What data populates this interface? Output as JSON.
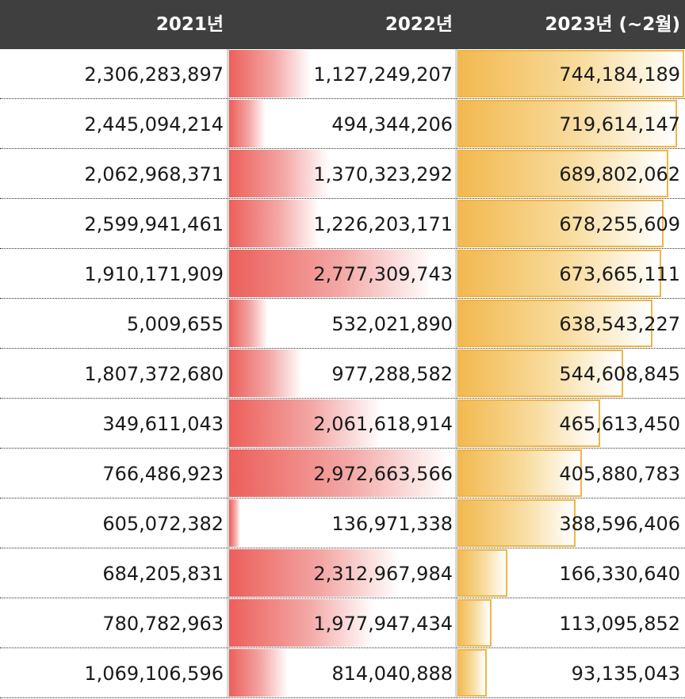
{
  "header": {
    "col_2021": "2021년",
    "col_2022": "2022년",
    "col_2023": "2023년 (~2월)"
  },
  "colors": {
    "header_bg": "#3f3f3f",
    "bar_2022": "#ec5f5a",
    "bar_2023": "#f2b84e"
  },
  "rows": [
    {
      "v2021": "2,306,283,897",
      "v2022": "1,127,249,207",
      "v2023": "744,184,189",
      "fill2022": 0.36,
      "fill2023": 1.0
    },
    {
      "v2021": "2,445,094,214",
      "v2022": "494,344,206",
      "v2023": "719,614,147",
      "fill2022": 0.16,
      "fill2023": 0.97
    },
    {
      "v2021": "2,062,968,371",
      "v2022": "1,370,323,292",
      "v2023": "689,802,062",
      "fill2022": 0.44,
      "fill2023": 0.93
    },
    {
      "v2021": "2,599,941,461",
      "v2022": "1,226,203,171",
      "v2023": "678,255,609",
      "fill2022": 0.4,
      "fill2023": 0.91
    },
    {
      "v2021": "1,910,171,909",
      "v2022": "2,777,309,743",
      "v2023": "673,665,111",
      "fill2022": 0.9,
      "fill2023": 0.9
    },
    {
      "v2021": "5,009,655",
      "v2022": "532,021,890",
      "v2023": "638,543,227",
      "fill2022": 0.17,
      "fill2023": 0.86
    },
    {
      "v2021": "1,807,372,680",
      "v2022": "977,288,582",
      "v2023": "544,608,845",
      "fill2022": 0.32,
      "fill2023": 0.73
    },
    {
      "v2021": "349,611,043",
      "v2022": "2,061,618,914",
      "v2023": "465,613,450",
      "fill2022": 0.67,
      "fill2023": 0.63
    },
    {
      "v2021": "766,486,923",
      "v2022": "2,972,663,566",
      "v2023": "405,880,783",
      "fill2022": 0.97,
      "fill2023": 0.55
    },
    {
      "v2021": "605,072,382",
      "v2022": "136,971,338",
      "v2023": "388,596,406",
      "fill2022": 0.05,
      "fill2023": 0.52
    },
    {
      "v2021": "684,205,831",
      "v2022": "2,312,967,984",
      "v2023": "166,330,640",
      "fill2022": 0.75,
      "fill2023": 0.22
    },
    {
      "v2021": "780,782,963",
      "v2022": "1,977,947,434",
      "v2023": "113,095,852",
      "fill2022": 0.64,
      "fill2023": 0.15
    },
    {
      "v2021": "1,069,106,596",
      "v2022": "814,040,888",
      "v2023": "93,135,043",
      "fill2022": 0.26,
      "fill2023": 0.13
    }
  ]
}
